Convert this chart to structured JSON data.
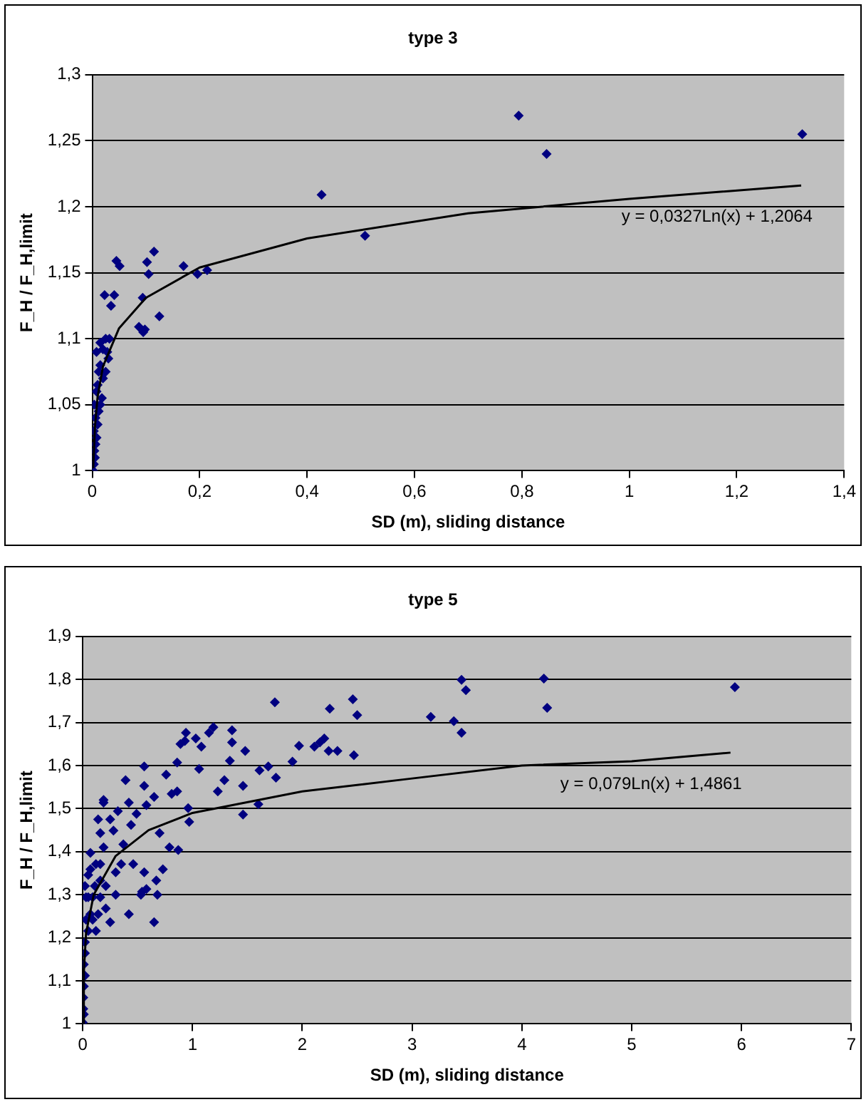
{
  "chart_data": [
    {
      "type": "scatter",
      "title": "type 3",
      "xlabel": "SD (m), sliding distance",
      "ylabel": "F_H / F_H,limit",
      "xlim": [
        0,
        1.4
      ],
      "xticks": [
        0,
        {
          "value": 0.2,
          "label": "0,2"
        },
        {
          "value": 0.4,
          "label": "0,4"
        },
        {
          "value": 0.6,
          "label": "0,6"
        },
        {
          "value": 0.8,
          "label": "0,8"
        },
        1,
        {
          "value": 1.2,
          "label": "1,2"
        },
        {
          "value": 1.4,
          "label": "1,4"
        }
      ],
      "ylim": [
        1,
        1.3
      ],
      "yticks": [
        1,
        {
          "value": 1.05,
          "label": "1,05"
        },
        {
          "value": 1.1,
          "label": "1,1"
        },
        {
          "value": 1.15,
          "label": "1,15"
        },
        {
          "value": 1.2,
          "label": "1,2"
        },
        {
          "value": 1.25,
          "label": "1,25"
        },
        {
          "value": 1.3,
          "label": "1,3"
        }
      ],
      "grid": "y",
      "legend": false,
      "marker": "diamond",
      "annotations": [
        "y = 0,0327Ln(x) + 1,2064"
      ],
      "series": [
        {
          "type": "scatter",
          "color": "#000080",
          "x": [
            0.002,
            0.003,
            0.005,
            0.004,
            0.006,
            0.008,
            0.003,
            0.01,
            0.006,
            0.012,
            0.004,
            0.015,
            0.008,
            0.018,
            0.01,
            0.02,
            0.012,
            0.025,
            0.015,
            0.03,
            0.008,
            0.02,
            0.015,
            0.025,
            0.032,
            0.028,
            0.045,
            0.051,
            0.023,
            0.041,
            0.035,
            0.102,
            0.115,
            0.105,
            0.094,
            0.125,
            0.087,
            0.098,
            0.095,
            0.17,
            0.196,
            0.214,
            0.427,
            0.508,
            0.794,
            0.846,
            1.322
          ],
          "values": [
            1.0,
            1.005,
            1.01,
            1.015,
            1.02,
            1.025,
            1.03,
            1.035,
            1.04,
            1.045,
            1.05,
            1.05,
            1.06,
            1.055,
            1.065,
            1.07,
            1.075,
            1.075,
            1.08,
            1.085,
            1.09,
            1.092,
            1.097,
            1.1,
            1.1,
            1.09,
            1.159,
            1.155,
            1.133,
            1.133,
            1.125,
            1.158,
            1.166,
            1.149,
            1.131,
            1.117,
            1.109,
            1.107,
            1.105,
            1.155,
            1.149,
            1.152,
            1.209,
            1.178,
            1.269,
            1.24,
            1.255
          ]
        },
        {
          "type": "line",
          "color": "#000000",
          "marker": "none",
          "x": [
            0.0019,
            0.005,
            0.01,
            0.02,
            0.05,
            0.1,
            0.2,
            0.4,
            0.7,
            1.0,
            1.32
          ],
          "values": [
            1.002,
            1.033,
            1.056,
            1.079,
            1.108,
            1.131,
            1.154,
            1.176,
            1.195,
            1.206,
            1.216
          ]
        }
      ]
    },
    {
      "type": "scatter",
      "title": "type 5",
      "xlabel": "SD (m), sliding distance",
      "ylabel": "F_H / F_H,limit",
      "xlim": [
        0,
        7
      ],
      "xticks": [
        0,
        1,
        2,
        3,
        4,
        5,
        6,
        7
      ],
      "ylim": [
        1,
        1.9
      ],
      "yticks": [
        1,
        {
          "value": 1.1,
          "label": "1,1"
        },
        {
          "value": 1.2,
          "label": "1,2"
        },
        {
          "value": 1.3,
          "label": "1,3"
        },
        {
          "value": 1.4,
          "label": "1,4"
        },
        {
          "value": 1.5,
          "label": "1,5"
        },
        {
          "value": 1.6,
          "label": "1,6"
        },
        {
          "value": 1.7,
          "label": "1,7"
        },
        {
          "value": 1.8,
          "label": "1,8"
        },
        {
          "value": 1.9,
          "label": "1,9"
        }
      ],
      "grid": "y",
      "legend": false,
      "marker": "diamond",
      "annotations": [
        "y = 0,079Ln(x) + 1,4861"
      ],
      "series": [
        {
          "type": "scatter",
          "color": "#000080",
          "x": [
            1.75,
            2.25,
            2.46,
            2.47,
            2.32,
            2.2,
            2.16,
            2.11,
            1.97,
            1.91,
            1.69,
            1.76,
            1.61,
            1.48,
            1.46,
            1.6,
            1.46,
            1.36,
            1.36,
            1.34,
            1.29,
            1.23,
            1.19,
            1.15,
            1.08,
            1.06,
            1.03,
            0.94,
            0.93,
            0.89,
            0.86,
            0.97,
            0.96,
            0.86,
            0.81,
            0.76,
            0.87,
            0.79,
            0.7,
            0.73,
            0.67,
            0.65,
            0.68,
            0.56,
            0.58,
            0.53,
            0.42,
            0.54,
            0.56,
            0.56,
            0.65,
            0.58,
            0.39,
            0.42,
            0.44,
            0.49,
            0.46,
            0.37,
            0.35,
            0.3,
            0.3,
            0.25,
            0.21,
            0.21,
            0.28,
            0.32,
            0.25,
            0.19,
            0.14,
            0.19,
            0.16,
            0.19,
            0.16,
            0.16,
            0.16,
            0.14,
            0.12,
            0.11,
            0.09,
            0.07,
            0.07,
            0.05,
            0.03,
            0.02,
            0.01,
            0.01,
            0.005,
            0,
            0.02,
            0.05,
            0.07,
            0.09,
            0.12,
            0.02,
            0.005,
            0.01,
            0.03,
            0.05,
            0.02,
            3.45,
            3.49,
            4.2,
            4.23,
            5.94,
            3.17,
            3.38,
            3.45,
            2.5,
            2.24
          ],
          "values": [
            1.747,
            1.732,
            1.754,
            1.624,
            1.634,
            1.663,
            1.654,
            1.644,
            1.646,
            1.609,
            1.598,
            1.572,
            1.589,
            1.634,
            1.553,
            1.51,
            1.486,
            1.682,
            1.654,
            1.611,
            1.566,
            1.54,
            1.689,
            1.676,
            1.644,
            1.592,
            1.663,
            1.676,
            1.657,
            1.65,
            1.607,
            1.469,
            1.501,
            1.54,
            1.534,
            1.579,
            1.404,
            1.41,
            1.443,
            1.359,
            1.333,
            1.236,
            1.3,
            1.352,
            1.313,
            1.3,
            1.255,
            1.307,
            1.598,
            1.553,
            1.527,
            1.508,
            1.566,
            1.514,
            1.462,
            1.488,
            1.371,
            1.417,
            1.371,
            1.352,
            1.3,
            1.236,
            1.32,
            1.268,
            1.449,
            1.494,
            1.475,
            1.52,
            1.475,
            1.514,
            1.443,
            1.41,
            1.371,
            1.333,
            1.294,
            1.255,
            1.371,
            1.32,
            1.294,
            1.397,
            1.359,
            1.294,
            1.242,
            1.19,
            1.138,
            1.087,
            1.035,
            1.003,
            1.164,
            1.216,
            1.255,
            1.242,
            1.216,
            1.112,
            1.061,
            1.022,
            1.294,
            1.346,
            1.32,
            1.799,
            1.775,
            1.802,
            1.734,
            1.782,
            1.713,
            1.703,
            1.676,
            1.717,
            1.634
          ]
        },
        {
          "type": "line",
          "color": "#000000",
          "marker": "none",
          "x": [
            0.0021,
            0.01,
            0.03,
            0.1,
            0.3,
            0.6,
            1,
            2,
            3,
            4,
            5,
            5.9
          ],
          "values": [
            1.0,
            1.12,
            1.21,
            1.3,
            1.39,
            1.45,
            1.49,
            1.54,
            1.57,
            1.6,
            1.61,
            1.63
          ]
        }
      ]
    }
  ]
}
